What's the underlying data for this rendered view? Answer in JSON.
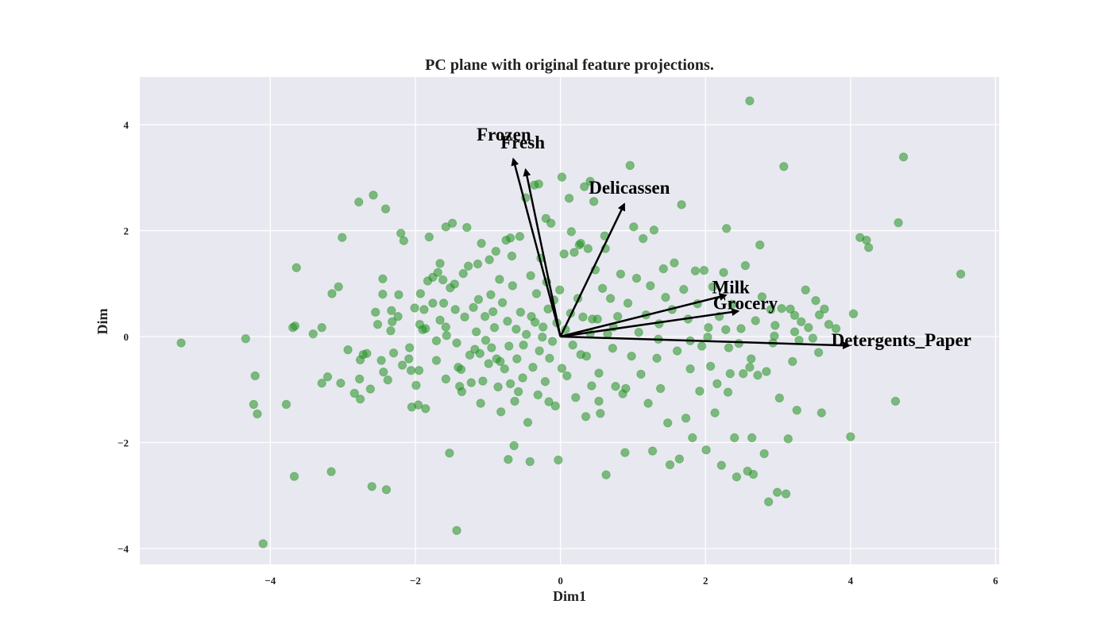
{
  "chart_data": {
    "type": "scatter",
    "title": "PC plane with original feature projections.",
    "xlabel": "Dim1",
    "ylabel": "Dim",
    "xlim": [
      -5.8,
      6.05
    ],
    "ylim": [
      -4.3,
      4.9
    ],
    "xticks": [
      -4,
      -2,
      0,
      2,
      4,
      6
    ],
    "yticks": [
      -4,
      -2,
      0,
      2,
      4
    ],
    "xtick_labels": [
      "−4",
      "−2",
      "0",
      "2",
      "4",
      "6"
    ],
    "ytick_labels": [
      "−4",
      "−2",
      "0",
      "2",
      "4"
    ],
    "grid": true,
    "background_color": "#e8e8f0",
    "grid_color": "#ffffff",
    "point_color": "#1f8f1f",
    "point_opacity": 0.55,
    "arrow_color": "#000000",
    "arrows": [
      {
        "label": "Frozen",
        "x": -0.65,
        "y": 3.35,
        "label_x": -0.78,
        "label_y": 3.7
      },
      {
        "label": "Fresh",
        "x": -0.48,
        "y": 3.15,
        "label_x": -0.52,
        "label_y": 3.55
      },
      {
        "label": "Delicassen",
        "x": 0.88,
        "y": 2.5,
        "label_x": 0.95,
        "label_y": 2.7
      },
      {
        "label": "Milk",
        "x": 2.28,
        "y": 0.78,
        "label_x": 2.35,
        "label_y": 0.82
      },
      {
        "label": "Grocery",
        "x": 2.45,
        "y": 0.48,
        "label_x": 2.55,
        "label_y": 0.52
      },
      {
        "label": "Detergents_Paper",
        "x": 3.98,
        "y": -0.17,
        "label_x": 4.7,
        "label_y": -0.18
      }
    ],
    "points": [
      [
        -5.23,
        -0.12
      ],
      [
        -4.34,
        -0.04
      ],
      [
        -4.21,
        -0.74
      ],
      [
        -4.23,
        -1.28
      ],
      [
        -4.18,
        -1.46
      ],
      [
        -4.1,
        -3.91
      ],
      [
        -3.78,
        -1.28
      ],
      [
        -3.69,
        0.17
      ],
      [
        -3.66,
        0.2
      ],
      [
        -3.67,
        -2.64
      ],
      [
        -3.64,
        1.3
      ],
      [
        -3.41,
        0.05
      ],
      [
        -3.29,
        -0.88
      ],
      [
        -3.29,
        0.17
      ],
      [
        -3.21,
        -0.76
      ],
      [
        -3.15,
        0.81
      ],
      [
        -3.16,
        -2.55
      ],
      [
        -3.06,
        0.94
      ],
      [
        -3.03,
        -0.88
      ],
      [
        -3.01,
        1.87
      ],
      [
        -2.93,
        -0.25
      ],
      [
        -2.84,
        -1.07
      ],
      [
        -2.78,
        2.54
      ],
      [
        -2.76,
        -0.44
      ],
      [
        -2.72,
        -0.34
      ],
      [
        -2.76,
        -1.18
      ],
      [
        -2.77,
        -0.8
      ],
      [
        -2.67,
        -0.32
      ],
      [
        -2.58,
        2.67
      ],
      [
        -2.6,
        -2.83
      ],
      [
        -2.55,
        0.46
      ],
      [
        -2.52,
        0.23
      ],
      [
        -2.45,
        1.09
      ],
      [
        -2.45,
        0.8
      ],
      [
        -2.47,
        -0.45
      ],
      [
        -2.44,
        -0.67
      ],
      [
        -2.38,
        -0.82
      ],
      [
        -2.41,
        2.41
      ],
      [
        -2.4,
        -2.89
      ],
      [
        -2.34,
        0.11
      ],
      [
        -2.32,
        0.28
      ],
      [
        -2.33,
        0.49
      ],
      [
        -2.3,
        -0.31
      ],
      [
        -2.24,
        0.38
      ],
      [
        -2.23,
        0.79
      ],
      [
        -2.18,
        -0.54
      ],
      [
        -2.2,
        1.95
      ],
      [
        -2.16,
        1.81
      ],
      [
        -2.09,
        -0.42
      ],
      [
        -2.06,
        -0.64
      ],
      [
        -2.01,
        0.54
      ],
      [
        -1.99,
        -0.92
      ],
      [
        -1.94,
        0.23
      ],
      [
        -1.96,
        -1.29
      ],
      [
        -1.95,
        -0.64
      ],
      [
        -1.93,
        0.81
      ],
      [
        -1.88,
        0.51
      ],
      [
        -1.86,
        0.15
      ],
      [
        -1.83,
        1.05
      ],
      [
        -1.81,
        1.88
      ],
      [
        -1.76,
        1.12
      ],
      [
        -1.76,
        0.63
      ],
      [
        -1.71,
        -0.45
      ],
      [
        -1.69,
        1.21
      ],
      [
        -1.66,
        1.38
      ],
      [
        -1.62,
        1.07
      ],
      [
        -1.61,
        0.63
      ],
      [
        -1.58,
        0.18
      ],
      [
        -1.58,
        -0.8
      ],
      [
        -1.57,
        0.02
      ],
      [
        -1.52,
        0.92
      ],
      [
        -1.49,
        2.14
      ],
      [
        -1.45,
        0.51
      ],
      [
        -1.43,
        -0.12
      ],
      [
        -1.41,
        -0.58
      ],
      [
        -1.39,
        -0.94
      ],
      [
        -1.37,
        -0.62
      ],
      [
        -1.36,
        -1.04
      ],
      [
        -1.34,
        1.19
      ],
      [
        -1.32,
        0.37
      ],
      [
        -1.29,
        2.06
      ],
      [
        -1.25,
        -0.35
      ],
      [
        -1.23,
        -0.87
      ],
      [
        -1.2,
        0.55
      ],
      [
        -1.18,
        -0.24
      ],
      [
        -1.16,
        0.09
      ],
      [
        -1.13,
        0.7
      ],
      [
        -1.1,
        -1.26
      ],
      [
        -1.09,
        1.76
      ],
      [
        -1.07,
        -0.84
      ],
      [
        -1.04,
        0.38
      ],
      [
        -1.03,
        -0.07
      ],
      [
        -0.99,
        -0.51
      ],
      [
        -0.96,
        0.79
      ],
      [
        -0.95,
        -0.21
      ],
      [
        -0.93,
        0.47
      ],
      [
        -0.91,
        0.17
      ],
      [
        -0.88,
        -0.42
      ],
      [
        -0.86,
        -0.95
      ],
      [
        -0.84,
        1.08
      ],
      [
        -0.82,
        -1.42
      ],
      [
        -0.8,
        0.64
      ],
      [
        -0.77,
        -0.61
      ],
      [
        -0.75,
        1.82
      ],
      [
        -0.73,
        0.29
      ],
      [
        -0.71,
        -0.18
      ],
      [
        -0.69,
        -0.89
      ],
      [
        -0.67,
        1.52
      ],
      [
        -0.66,
        0.96
      ],
      [
        -0.63,
        -1.22
      ],
      [
        -0.61,
        0.14
      ],
      [
        -0.6,
        -0.42
      ],
      [
        -0.56,
        1.89
      ],
      [
        -0.55,
        0.46
      ],
      [
        -0.52,
        -0.78
      ],
      [
        -0.48,
        2.62
      ],
      [
        -0.47,
        0.04
      ],
      [
        -0.45,
        -1.62
      ],
      [
        -0.42,
        -2.36
      ],
      [
        -0.41,
        1.15
      ],
      [
        -0.38,
        -0.58
      ],
      [
        -0.35,
        0.27
      ],
      [
        -0.33,
        0.81
      ],
      [
        -0.31,
        -1.1
      ],
      [
        -0.29,
        -0.27
      ],
      [
        -0.27,
        1.48
      ],
      [
        -0.24,
        0.18
      ],
      [
        -0.21,
        -0.85
      ],
      [
        -0.19,
        1.03
      ],
      [
        -0.17,
        0.52
      ],
      [
        -0.15,
        -0.41
      ],
      [
        -0.13,
        2.14
      ],
      [
        -0.11,
        -0.09
      ],
      [
        -0.09,
        0.69
      ],
      [
        -0.07,
        -1.31
      ],
      [
        -0.05,
        0.26
      ],
      [
        -0.03,
        -2.33
      ],
      [
        -0.01,
        0.88
      ],
      [
        0.02,
        3.01
      ],
      [
        0.02,
        -0.6
      ],
      [
        0.05,
        1.56
      ],
      [
        0.07,
        0.13
      ],
      [
        0.09,
        -0.74
      ],
      [
        0.12,
        2.61
      ],
      [
        0.14,
        0.44
      ],
      [
        0.17,
        -0.16
      ],
      [
        0.19,
        1.59
      ],
      [
        0.21,
        -1.15
      ],
      [
        0.24,
        0.72
      ],
      [
        0.26,
        1.73
      ],
      [
        0.28,
        -0.34
      ],
      [
        0.31,
        0.37
      ],
      [
        0.33,
        2.83
      ],
      [
        0.35,
        -1.51
      ],
      [
        0.38,
        1.66
      ],
      [
        0.41,
        0.06
      ],
      [
        0.43,
        -0.93
      ],
      [
        0.46,
        2.55
      ],
      [
        0.48,
        1.26
      ],
      [
        0.51,
        0.33
      ],
      [
        0.53,
        -0.69
      ],
      [
        0.55,
        -1.45
      ],
      [
        0.58,
        0.91
      ],
      [
        0.61,
        1.9
      ],
      [
        0.63,
        -2.61
      ],
      [
        0.65,
        0.05
      ],
      [
        0.69,
        0.72
      ],
      [
        0.72,
        -0.22
      ],
      [
        0.76,
        -0.94
      ],
      [
        0.79,
        0.38
      ],
      [
        0.83,
        1.18
      ],
      [
        0.86,
        -1.08
      ],
      [
        0.89,
        -2.19
      ],
      [
        0.93,
        0.63
      ],
      [
        0.96,
        3.23
      ],
      [
        0.98,
        -0.37
      ],
      [
        1.01,
        2.07
      ],
      [
        1.05,
        1.1
      ],
      [
        1.08,
        0.08
      ],
      [
        1.11,
        -0.71
      ],
      [
        1.14,
        1.85
      ],
      [
        1.18,
        0.41
      ],
      [
        1.21,
        -1.26
      ],
      [
        1.24,
        0.96
      ],
      [
        1.27,
        -2.16
      ],
      [
        1.29,
        2.01
      ],
      [
        1.33,
        -0.41
      ],
      [
        1.36,
        0.24
      ],
      [
        1.38,
        -0.98
      ],
      [
        1.42,
        1.28
      ],
      [
        1.45,
        0.74
      ],
      [
        1.48,
        -1.63
      ],
      [
        1.51,
        -2.42
      ],
      [
        1.54,
        0.51
      ],
      [
        1.57,
        1.39
      ],
      [
        1.61,
        -0.27
      ],
      [
        1.64,
        -2.31
      ],
      [
        1.67,
        2.49
      ],
      [
        1.7,
        0.89
      ],
      [
        1.73,
        -1.54
      ],
      [
        1.76,
        0.33
      ],
      [
        1.79,
        -0.61
      ],
      [
        1.82,
        -1.91
      ],
      [
        1.86,
        1.24
      ],
      [
        1.89,
        0.62
      ],
      [
        1.92,
        -1.03
      ],
      [
        1.95,
        -0.18
      ],
      [
        1.98,
        1.25
      ],
      [
        2.01,
        -2.14
      ],
      [
        2.04,
        0.17
      ],
      [
        2.07,
        -0.56
      ],
      [
        2.1,
        0.94
      ],
      [
        2.13,
        -1.44
      ],
      [
        2.16,
        -0.89
      ],
      [
        2.19,
        0.38
      ],
      [
        2.22,
        -2.43
      ],
      [
        2.25,
        1.21
      ],
      [
        2.28,
        0.13
      ],
      [
        2.31,
        -1.05
      ],
      [
        2.34,
        -0.7
      ],
      [
        2.37,
        0.61
      ],
      [
        2.4,
        -1.91
      ],
      [
        2.43,
        -2.65
      ],
      [
        2.46,
        -0.13
      ],
      [
        2.49,
        0.15
      ],
      [
        2.52,
        -0.7
      ],
      [
        2.55,
        1.34
      ],
      [
        2.58,
        -2.54
      ],
      [
        2.61,
        -0.58
      ],
      [
        2.64,
        -1.91
      ],
      [
        2.66,
        -2.6
      ],
      [
        2.69,
        0.3
      ],
      [
        2.72,
        -0.73
      ],
      [
        2.75,
        1.73
      ],
      [
        2.78,
        0.75
      ],
      [
        2.81,
        -2.21
      ],
      [
        2.84,
        -0.66
      ],
      [
        2.87,
        -3.12
      ],
      [
        2.9,
        0.51
      ],
      [
        2.93,
        -0.12
      ],
      [
        2.96,
        0.21
      ],
      [
        2.99,
        -2.94
      ],
      [
        3.02,
        -1.16
      ],
      [
        3.05,
        0.53
      ],
      [
        3.08,
        3.21
      ],
      [
        3.11,
        -2.97
      ],
      [
        3.14,
        -1.93
      ],
      [
        3.17,
        0.52
      ],
      [
        3.2,
        -0.47
      ],
      [
        3.23,
        0.4
      ],
      [
        3.26,
        -1.39
      ],
      [
        3.29,
        -0.07
      ],
      [
        3.32,
        0.28
      ],
      [
        3.38,
        0.88
      ],
      [
        3.42,
        0.17
      ],
      [
        3.48,
        -0.03
      ],
      [
        3.52,
        0.68
      ],
      [
        3.56,
        -0.3
      ],
      [
        3.6,
        -1.44
      ],
      [
        3.64,
        0.52
      ],
      [
        3.7,
        0.23
      ],
      [
        3.8,
        0.15
      ],
      [
        4.04,
        0.43
      ],
      [
        4.0,
        -1.89
      ],
      [
        4.13,
        1.87
      ],
      [
        4.22,
        1.82
      ],
      [
        4.25,
        1.68
      ],
      [
        4.62,
        -1.22
      ],
      [
        4.66,
        2.15
      ],
      [
        4.73,
        3.39
      ],
      [
        5.52,
        1.18
      ],
      [
        2.61,
        4.45
      ],
      [
        2.29,
        2.04
      ],
      [
        -1.43,
        -3.66
      ],
      [
        -0.72,
        -2.32
      ],
      [
        -0.64,
        -2.06
      ],
      [
        -0.3,
        2.88
      ],
      [
        -0.36,
        2.86
      ],
      [
        0.62,
        1.66
      ],
      [
        0.41,
        2.93
      ],
      [
        0.28,
        1.76
      ],
      [
        -1.53,
        -2.2
      ],
      [
        -1.46,
        0.99
      ],
      [
        -1.58,
        2.07
      ],
      [
        -1.86,
        -1.36
      ],
      [
        -2.05,
        -1.33
      ],
      [
        -2.62,
        -0.99
      ],
      [
        -1.11,
        -0.32
      ],
      [
        -0.83,
        -0.47
      ],
      [
        -0.58,
        -1.04
      ],
      [
        -0.16,
        -1.23
      ],
      [
        0.36,
        -0.37
      ],
      [
        0.53,
        -1.22
      ],
      [
        0.9,
        -0.98
      ],
      [
        1.35,
        -0.05
      ],
      [
        1.79,
        -0.08
      ],
      [
        2.03,
        -0.01
      ],
      [
        2.32,
        -0.21
      ],
      [
        2.63,
        -0.42
      ],
      [
        2.95,
        0.01
      ],
      [
        3.23,
        0.09
      ],
      [
        3.57,
        0.41
      ],
      [
        -0.98,
        1.45
      ],
      [
        -0.89,
        1.61
      ],
      [
        -0.69,
        1.86
      ],
      [
        -0.2,
        2.23
      ],
      [
        0.15,
        1.98
      ],
      [
        0.44,
        0.33
      ],
      [
        0.73,
        0.18
      ],
      [
        -0.25,
        -0.01
      ],
      [
        -0.4,
        0.38
      ],
      [
        -0.51,
        -0.16
      ],
      [
        -1.71,
        -0.08
      ],
      [
        -1.9,
        0.13
      ],
      [
        -2.08,
        -0.21
      ],
      [
        -1.27,
        1.33
      ],
      [
        -1.14,
        1.37
      ],
      [
        -1.66,
        0.31
      ]
    ]
  }
}
